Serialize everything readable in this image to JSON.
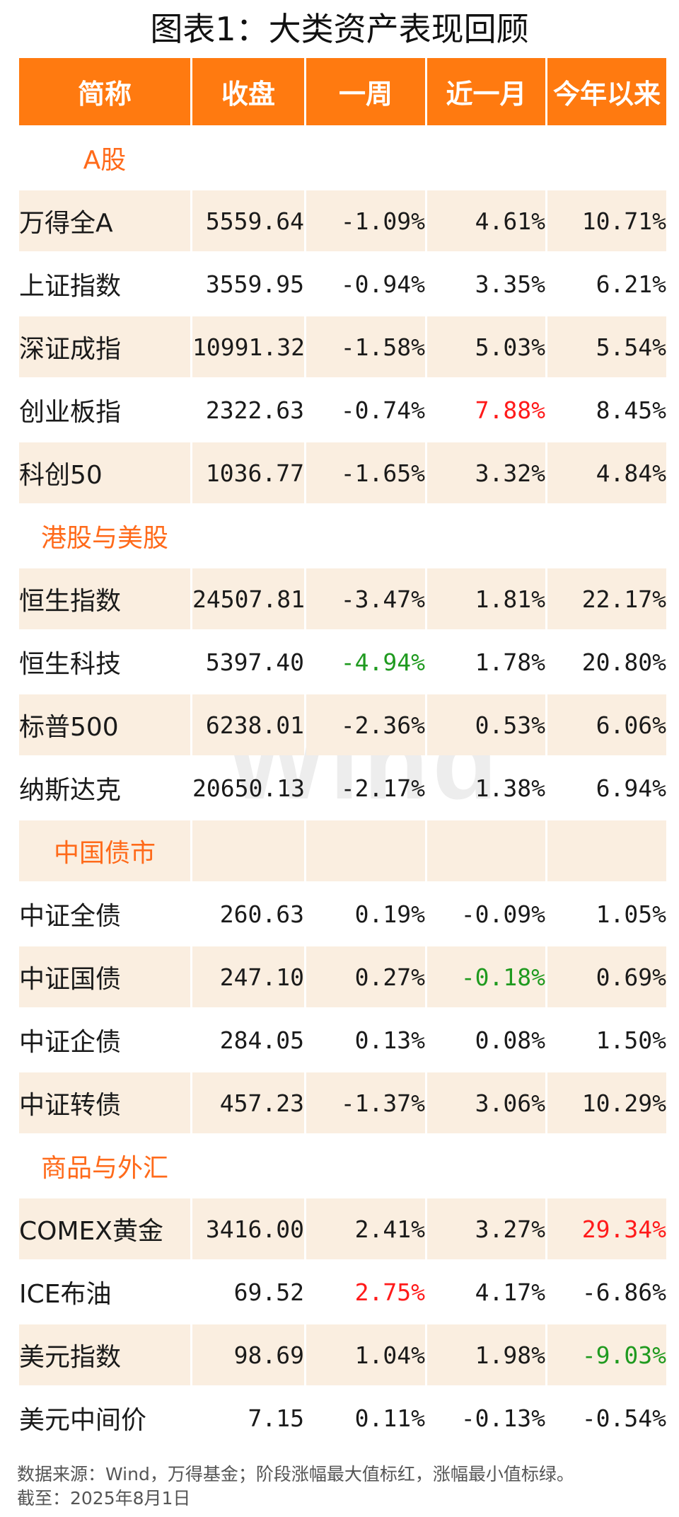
{
  "title": "图表1：大类资产表现回顾",
  "watermark": "Wind",
  "headers": [
    "简称",
    "收盘",
    "一周",
    "近一月",
    "今年以来"
  ],
  "sections": {
    "a_share": "A股",
    "hk_us": "港股与美股",
    "china_bond": "中国债市",
    "commodity_fx": "商品与外汇"
  },
  "rows": [
    [
      "万得全A",
      "5559.64",
      "-1.09%",
      "4.61%",
      "10.71%"
    ],
    [
      "上证指数",
      "3559.95",
      "-0.94%",
      "3.35%",
      "6.21%"
    ],
    [
      "深证成指",
      "10991.32",
      "-1.58%",
      "5.03%",
      "5.54%"
    ],
    [
      "创业板指",
      "2322.63",
      "-0.74%",
      "7.88%",
      "8.45%"
    ],
    [
      "科创50",
      "1036.77",
      "-1.65%",
      "3.32%",
      "4.84%"
    ],
    [
      "恒生指数",
      "24507.81",
      "-3.47%",
      "1.81%",
      "22.17%"
    ],
    [
      "恒生科技",
      "5397.40",
      "-4.94%",
      "1.78%",
      "20.80%"
    ],
    [
      "标普500",
      "6238.01",
      "-2.36%",
      "0.53%",
      "6.06%"
    ],
    [
      "纳斯达克",
      "20650.13",
      "-2.17%",
      "1.38%",
      "6.94%"
    ],
    [
      "中证全债",
      "260.63",
      "0.19%",
      "-0.09%",
      "1.05%"
    ],
    [
      "中证国债",
      "247.10",
      "0.27%",
      "-0.18%",
      "0.69%"
    ],
    [
      "中证企债",
      "284.05",
      "0.13%",
      "0.08%",
      "1.50%"
    ],
    [
      "中证转债",
      "457.23",
      "-1.37%",
      "3.06%",
      "10.29%"
    ],
    [
      "COMEX黄金",
      "3416.00",
      "2.41%",
      "3.27%",
      "29.34%"
    ],
    [
      "ICE布油",
      "69.52",
      "2.75%",
      "4.17%",
      "-6.86%"
    ],
    [
      "美元指数",
      "98.69",
      "1.04%",
      "1.98%",
      "-9.03%"
    ],
    [
      "美元中间价",
      "7.15",
      "0.11%",
      "-0.13%",
      "-0.54%"
    ]
  ],
  "highlight_colors": {
    "max": "#ff1a1a",
    "min": "#1f9a1f",
    "header": "#ff7a10",
    "section": "#ff6a1a",
    "shade": "#faeee0"
  },
  "footer": {
    "source": "数据来源：Wind，万得基金；阶段涨幅最大值标红，涨幅最小值标绿。",
    "date": "截至：2025年8月1日"
  }
}
